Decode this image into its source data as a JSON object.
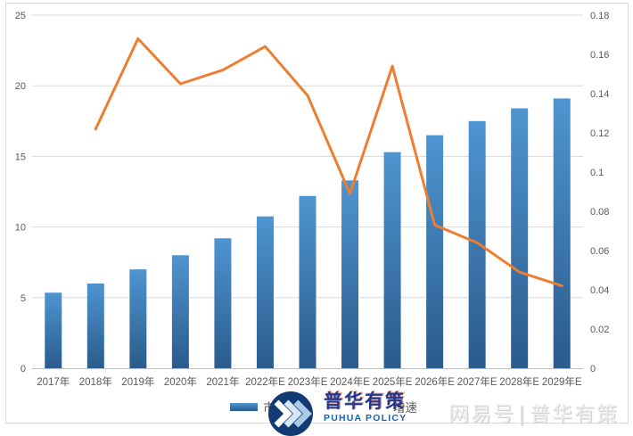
{
  "page": {
    "background": "#ffffff",
    "border_color": "#d9d9d9"
  },
  "legend": {
    "market_size": "市场规模",
    "growth": "增速"
  },
  "logo": {
    "cn": "普华有策",
    "en": "PUHUA POLICY"
  },
  "watermark": {
    "source": "网易号",
    "divider": "|",
    "brand": "普华有策"
  },
  "colors": {
    "bar_top": "#4e95d1",
    "bar_bottom": "#2a5b8c",
    "line": "#ED7D31",
    "grid": "#d9d9d9",
    "axis": "#bfbfbf",
    "tick_text": "#595959"
  },
  "chart_data": {
    "type": "bar",
    "categories": [
      "2017年",
      "2018年",
      "2019年",
      "2020年",
      "2021年",
      "2022年E",
      "2023年E",
      "2024年E",
      "2025年E",
      "2026年E",
      "2027年E",
      "2028年E",
      "2029年E"
    ],
    "series": [
      {
        "name": "市场规模",
        "type": "bar",
        "axis": "left",
        "values": [
          5.35,
          6.0,
          7.0,
          8.0,
          9.2,
          10.75,
          12.2,
          13.3,
          15.3,
          16.5,
          17.5,
          18.4,
          19.1
        ]
      },
      {
        "name": "增速",
        "type": "line",
        "axis": "right",
        "values": [
          null,
          0.122,
          0.168,
          0.145,
          0.152,
          0.164,
          0.139,
          0.089,
          0.154,
          0.073,
          0.064,
          0.049,
          0.042
        ]
      }
    ],
    "left_axis": {
      "min": 0,
      "max": 25,
      "ticks": [
        "0",
        "5",
        "10",
        "15",
        "20",
        "25"
      ]
    },
    "right_axis": {
      "min": 0,
      "max": 0.18,
      "ticks": [
        "0",
        "0.02",
        "0.04",
        "0.06",
        "0.08",
        "0.1",
        "0.12",
        "0.14",
        "0.16",
        "0.18"
      ]
    },
    "grid": true,
    "legend_position": "bottom"
  }
}
